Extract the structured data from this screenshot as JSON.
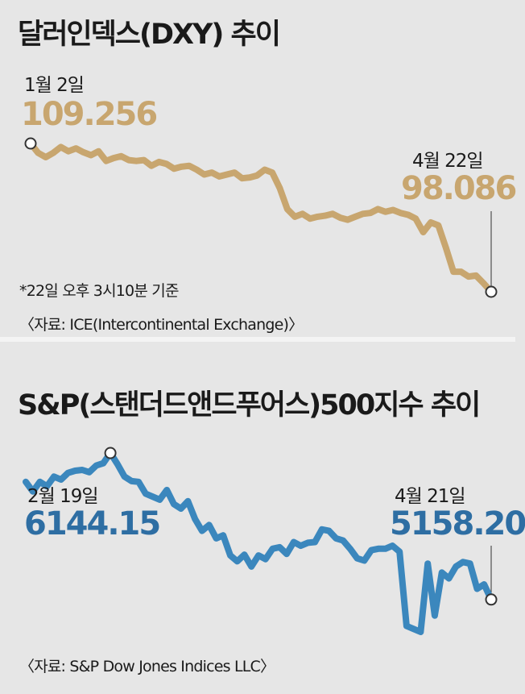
{
  "chart_data": [
    {
      "type": "line",
      "title": "달러인덱스(DXY) 추이",
      "color": "#c8a66f",
      "series": [
        {
          "values": [
            109.26,
            108.55,
            108.23,
            108.55,
            108.99,
            108.67,
            108.89,
            108.6,
            108.38,
            108.67,
            107.94,
            108.16,
            108.3,
            108.01,
            107.94,
            108.01,
            107.58,
            107.87,
            107.72,
            107.36,
            107.51,
            107.58,
            107.29,
            106.92,
            107.07,
            106.78,
            106.92,
            107.07,
            106.64,
            106.7,
            106.85,
            107.29,
            107.07,
            105.91,
            104.32,
            103.74,
            103.96,
            103.6,
            103.74,
            103.82,
            103.96,
            103.67,
            103.52,
            103.74,
            103.96,
            104.03,
            104.32,
            104.11,
            104.25,
            104.03,
            103.89,
            103.6,
            102.58,
            103.31,
            103.09,
            101.42,
            99.6,
            99.6,
            99.24,
            99.31,
            98.73,
            98.09
          ]
        }
      ],
      "start_annotation": {
        "date": "1월 2일",
        "value": "109.256"
      },
      "end_annotation": {
        "date": "4월 22일",
        "value": "98.086"
      },
      "notes": [
        "*22일 오후 3시10분 기준",
        "〈자료: ICE(Intercontinental Exchange)〉"
      ]
    },
    {
      "type": "line",
      "title": "S&P(스탠더드앤드푸어스)500지수 추이",
      "color": "#3b87bd",
      "series": [
        {
          "values": [
            5950,
            5885,
            5950,
            5920,
            5985,
            5965,
            6010,
            6025,
            6030,
            6015,
            6060,
            6075,
            6144.15,
            6070,
            5985,
            5955,
            5950,
            5870,
            5850,
            5830,
            5895,
            5800,
            5770,
            5820,
            5700,
            5620,
            5660,
            5570,
            5590,
            5455,
            5415,
            5460,
            5380,
            5455,
            5430,
            5500,
            5510,
            5465,
            5545,
            5520,
            5540,
            5545,
            5630,
            5620,
            5570,
            5555,
            5500,
            5435,
            5420,
            5490,
            5500,
            5500,
            5520,
            5480,
            4980,
            4960,
            4940,
            5400,
            5050,
            5340,
            5300,
            5380,
            5410,
            5400,
            5230,
            5260,
            5158.2
          ]
        }
      ],
      "peak_annotation": {
        "date": "2월 19일",
        "value": "6144.15"
      },
      "end_annotation": {
        "date": "4월 21일",
        "value": "5158.20"
      },
      "notes": [
        "〈자료: S&P Dow Jones Indices LLC〉"
      ]
    }
  ]
}
